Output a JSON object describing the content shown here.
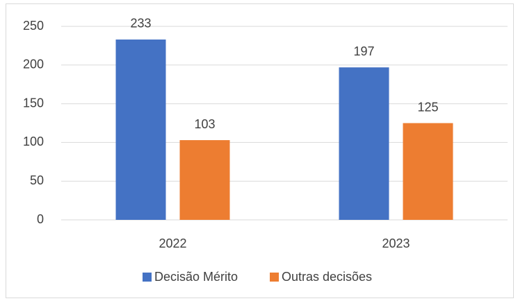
{
  "chart_data": {
    "type": "bar",
    "categories": [
      "2022",
      "2023"
    ],
    "series": [
      {
        "name": "Decisão Mérito",
        "color": "#4472c4",
        "values": [
          233,
          197
        ]
      },
      {
        "name": "Outras decisões",
        "color": "#ed7d31",
        "values": [
          103,
          125
        ]
      }
    ],
    "ylim": [
      0,
      250
    ],
    "yticks": [
      0,
      50,
      100,
      150,
      200,
      250
    ],
    "grid": true,
    "legend": "bottom"
  }
}
